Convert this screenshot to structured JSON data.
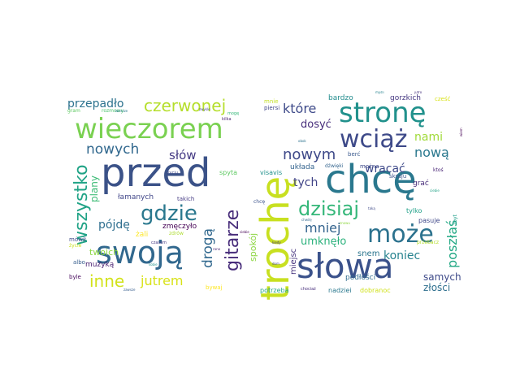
{
  "words": [
    {
      "text": "przed",
      "color": "#3b5288"
    },
    {
      "text": "chcę",
      "color": "#2a788e"
    },
    {
      "text": "trochę",
      "color": "#c8e020"
    },
    {
      "text": "słowa",
      "color": "#3b528b"
    },
    {
      "text": "swoją",
      "color": "#31688e"
    },
    {
      "text": "wieczorem",
      "color": "#7ad151"
    },
    {
      "text": "stronę",
      "color": "#21918c"
    },
    {
      "text": "wciąż",
      "color": "#3e4a89"
    },
    {
      "text": "może",
      "color": "#2c728e"
    },
    {
      "text": "gdzie",
      "color": "#2a788e"
    },
    {
      "text": "dzisiaj",
      "color": "#35b779"
    },
    {
      "text": "wszystko",
      "color": "#20a386"
    },
    {
      "text": "gitarze",
      "color": "#472c7a"
    },
    {
      "text": "czerwonej",
      "color": "#b5de2b"
    },
    {
      "text": "nowych",
      "color": "#31688e"
    },
    {
      "text": "drogą",
      "color": "#31688e"
    },
    {
      "text": "nowym",
      "color": "#3e4989"
    },
    {
      "text": "inne",
      "color": "#d2e21b"
    },
    {
      "text": "jutrem",
      "color": "#d8e219"
    },
    {
      "text": "które",
      "color": "#3e4a89"
    },
    {
      "text": "poszłaś",
      "color": "#22a884"
    },
    {
      "text": "nową",
      "color": "#2a788e"
    },
    {
      "text": "mniej",
      "color": "#33638d"
    },
    {
      "text": "słów",
      "color": "#443983"
    },
    {
      "text": "przepadło",
      "color": "#2c728e"
    },
    {
      "text": "pójdę",
      "color": "#2e6e8e"
    },
    {
      "text": "plany",
      "color": "#3bbb75"
    },
    {
      "text": "wracać",
      "color": "#3e4989"
    },
    {
      "text": "nami",
      "color": "#a0da39"
    },
    {
      "text": "koniec",
      "color": "#26828e"
    },
    {
      "text": "dosyć",
      "color": "#472d7b"
    },
    {
      "text": "tych",
      "color": "#414487"
    },
    {
      "text": "umknęło",
      "color": "#2db27d"
    },
    {
      "text": "spokój",
      "color": "#8ed645"
    },
    {
      "text": "samych",
      "color": "#3e4a89"
    },
    {
      "text": "złości",
      "color": "#2e6f8e"
    },
    {
      "text": "twoich",
      "color": "#8fd744"
    },
    {
      "text": "miejsc",
      "color": "#46337e"
    },
    {
      "text": "snem",
      "color": "#2b758e"
    },
    {
      "text": "łamanych",
      "color": "#404688"
    },
    {
      "text": "zmęczyło",
      "color": "#440154"
    },
    {
      "text": "żali",
      "color": "#fde725"
    },
    {
      "text": "muzyką",
      "color": "#481f71"
    },
    {
      "text": "układa",
      "color": "#33638d"
    },
    {
      "text": "podłości",
      "color": "#2f6b8e"
    },
    {
      "text": "gorzkich",
      "color": "#453781"
    },
    {
      "text": "bardzo",
      "color": "#228c8d"
    },
    {
      "text": "grać",
      "color": "#472c7a"
    },
    {
      "text": "tylko",
      "color": "#1fa088"
    },
    {
      "text": "pasuje",
      "color": "#3f4788"
    },
    {
      "text": "potrzeba",
      "color": "#22a785"
    },
    {
      "text": "nadziei",
      "color": "#2a788e"
    },
    {
      "text": "dobranoc",
      "color": "#d0e11c"
    },
    {
      "text": "bywaj",
      "color": "#fde725"
    },
    {
      "text": "byle",
      "color": "#46085c"
    },
    {
      "text": "albo",
      "color": "#365d8d"
    },
    {
      "text": "mówił",
      "color": "#3e4989"
    },
    {
      "text": "spyta",
      "color": "#5ec962"
    },
    {
      "text": "visavis",
      "color": "#21918c"
    },
    {
      "text": "takich",
      "color": "#443a83"
    },
    {
      "text": "skraju",
      "color": "#3a548c"
    },
    {
      "text": "berć",
      "color": "#38588c"
    },
    {
      "text": "można",
      "color": "#3e4989"
    },
    {
      "text": "dźwięki",
      "color": "#33638d"
    },
    {
      "text": "piersi",
      "color": "#404688"
    },
    {
      "text": "mnie",
      "color": "#c2df23"
    },
    {
      "text": "cześć",
      "color": "#d8e219"
    },
    {
      "text": "rozmowy",
      "color": "#4ac16d"
    },
    {
      "text": "gram",
      "color": "#5ec962"
    },
    {
      "text": "życie",
      "color": "#cae11f"
    },
    {
      "text": "zdrów",
      "color": "#addc30"
    },
    {
      "text": "przebacz",
      "color": "#b5de2b"
    },
    {
      "text": "zbyt",
      "color": "#1f9e89"
    },
    {
      "text": "ktoś",
      "color": "#482475"
    },
    {
      "text": "jutro",
      "color": "#46327e"
    },
    {
      "text": "myśli",
      "color": "#26828e"
    },
    {
      "text": "wiem",
      "color": "#440154"
    },
    {
      "text": "chcę",
      "color": "#3b528b"
    },
    {
      "text": "zwykle",
      "color": "#414487"
    },
    {
      "text": "mogę",
      "color": "#35b779"
    },
    {
      "text": "chociaż",
      "color": "#472d7b"
    },
    {
      "text": "wiersze",
      "color": "#2a788e"
    },
    {
      "text": "życiu",
      "color": "#3e4989"
    },
    {
      "text": "sobie",
      "color": "#21918c"
    },
    {
      "text": "czasem",
      "color": "#443983"
    },
    {
      "text": "znowu",
      "color": "#90d743"
    },
    {
      "text": "chwilę",
      "color": "#31688e"
    },
    {
      "text": "siebie",
      "color": "#440154"
    },
    {
      "text": "rano",
      "color": "#482475"
    },
    {
      "text": "kiedy",
      "color": "#46327e"
    },
    {
      "text": "obok",
      "color": "#2c728e"
    },
    {
      "text": "taką",
      "color": "#3e4a89"
    },
    {
      "text": "kilka",
      "color": "#481f71"
    },
    {
      "text": "dom",
      "color": "#404688"
    },
    {
      "text": "zawsze",
      "color": "#365d8d"
    },
    {
      "text": "ciebie",
      "color": "#20a386"
    }
  ]
}
